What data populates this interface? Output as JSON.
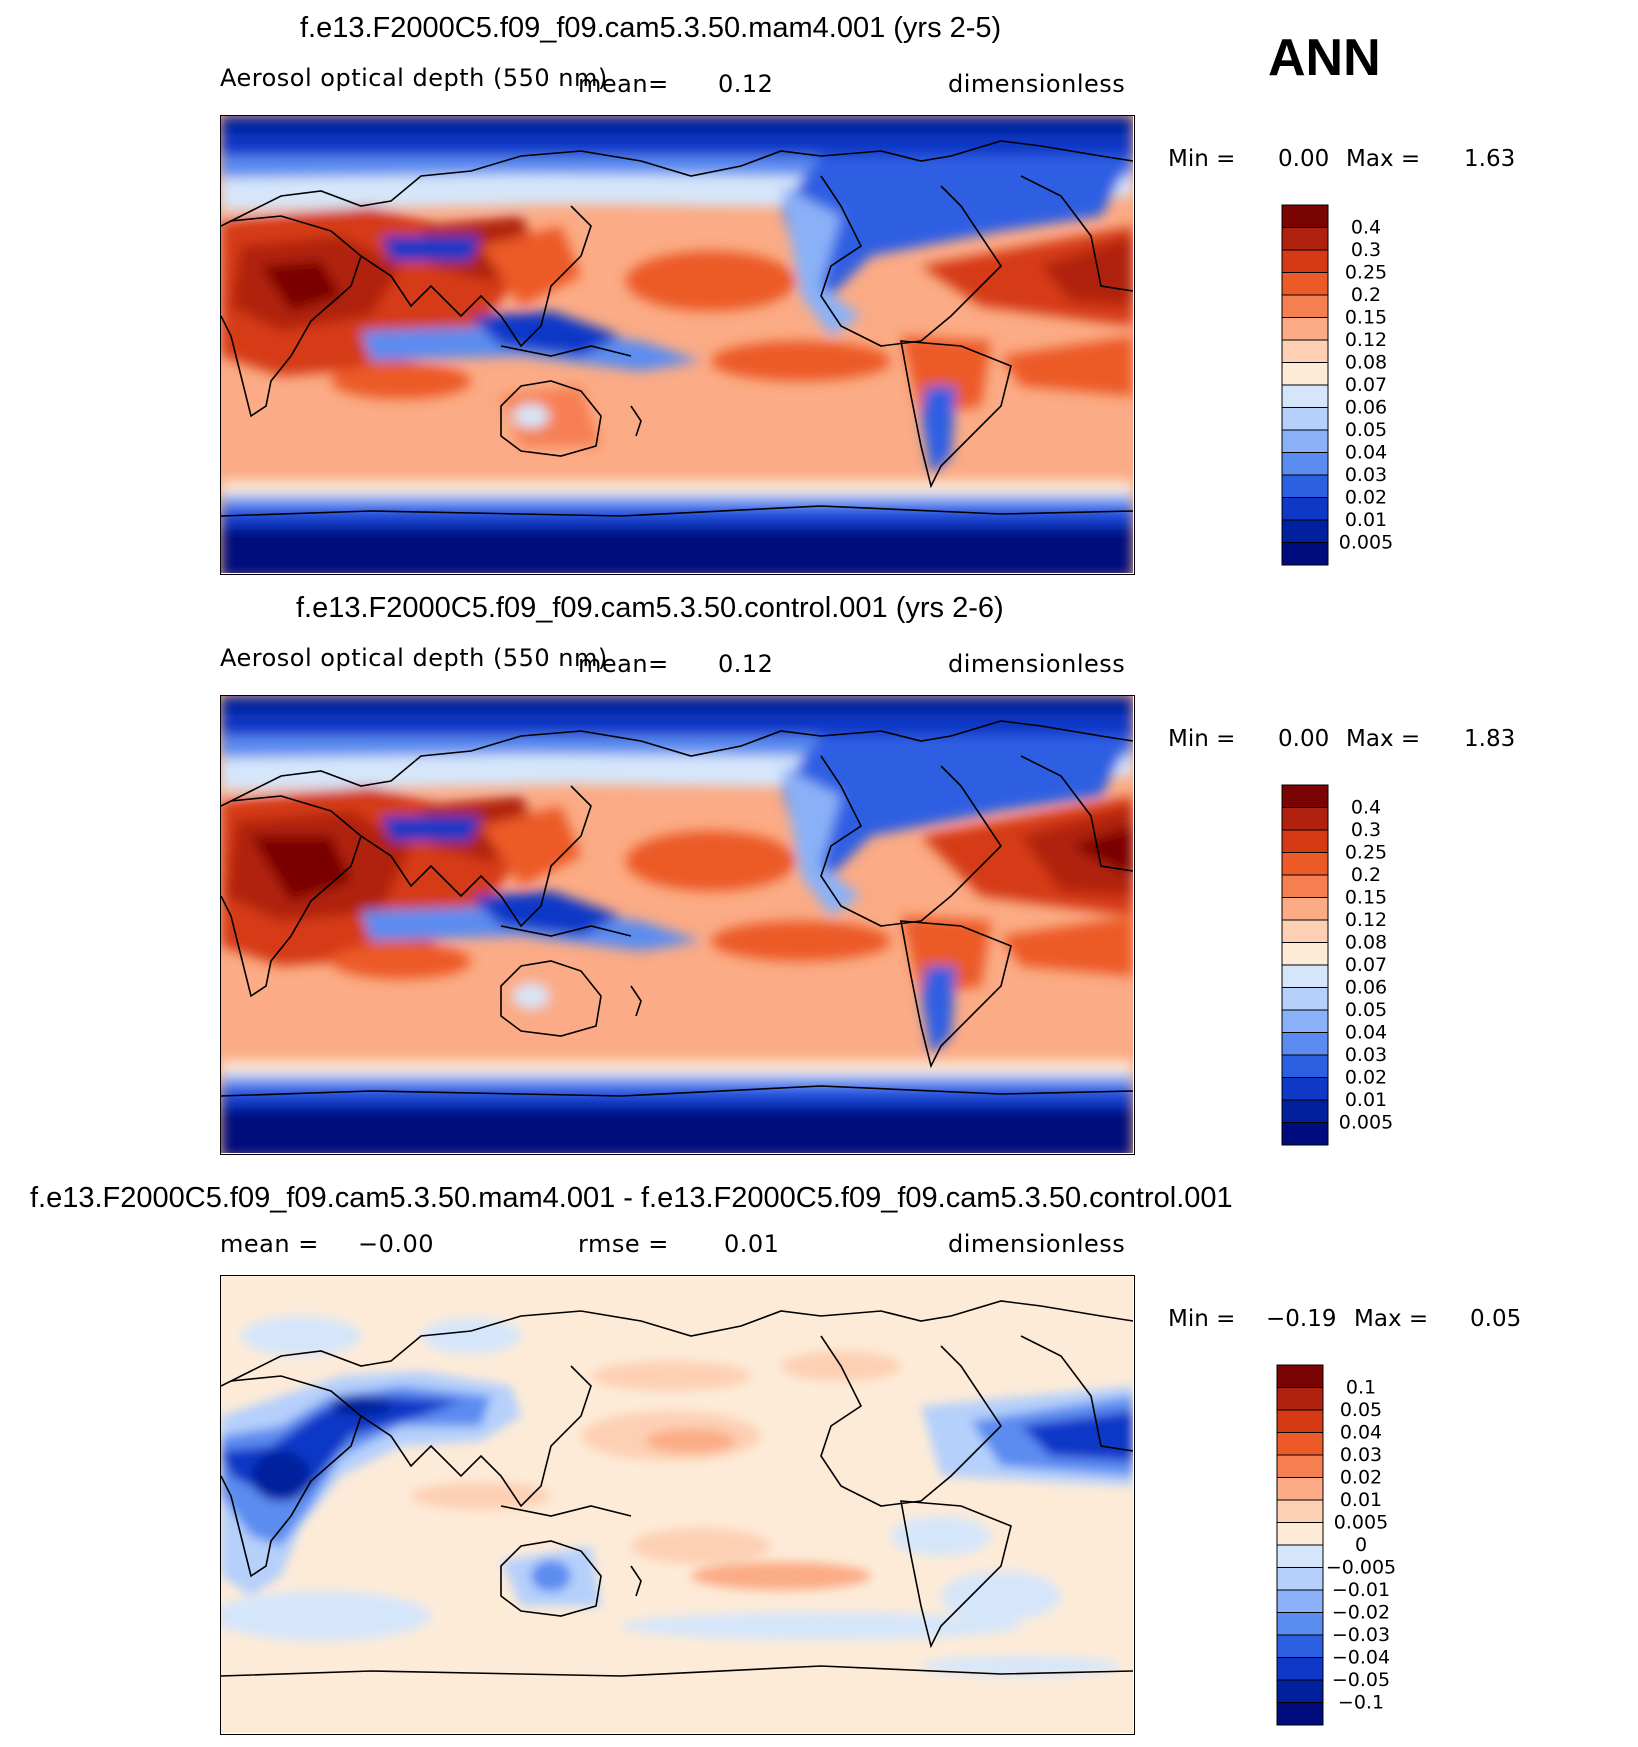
{
  "season": "ANN",
  "panels": [
    {
      "title": "f.e13.F2000C5.f09_f09.cam5.3.50.mam4.001 (yrs 2-5)",
      "variable": "Aerosol optical depth (550 nm)",
      "mean_label": "mean=",
      "mean_value": "0.12",
      "units": "dimensionless",
      "min_label": "Min =",
      "min_value": "0.00",
      "max_label": "Max =",
      "max_value": "1.63",
      "colorbar": {
        "labels": [
          "0.4",
          "0.3",
          "0.25",
          "0.2",
          "0.15",
          "0.12",
          "0.08",
          "0.07",
          "0.06",
          "0.05",
          "0.04",
          "0.03",
          "0.02",
          "0.01",
          "0.005"
        ],
        "colors": [
          "#7a0403",
          "#b0220f",
          "#d53a15",
          "#ec5a28",
          "#f67f52",
          "#fbab85",
          "#fdd0b4",
          "#fdebd8",
          "#d6e6fa",
          "#b5d0fb",
          "#8ab1f7",
          "#5b8cf0",
          "#2d5fe3",
          "#1038c7",
          "#00209e",
          "#000b7d"
        ]
      }
    },
    {
      "title": "f.e13.F2000C5.f09_f09.cam5.3.50.control.001 (yrs 2-6)",
      "variable": "Aerosol optical depth (550 nm)",
      "mean_label": "mean=",
      "mean_value": "0.12",
      "units": "dimensionless",
      "min_label": "Min =",
      "min_value": "0.00",
      "max_label": "Max =",
      "max_value": "1.83",
      "colorbar": {
        "labels": [
          "0.4",
          "0.3",
          "0.25",
          "0.2",
          "0.15",
          "0.12",
          "0.08",
          "0.07",
          "0.06",
          "0.05",
          "0.04",
          "0.03",
          "0.02",
          "0.01",
          "0.005"
        ],
        "colors": [
          "#7a0403",
          "#b0220f",
          "#d53a15",
          "#ec5a28",
          "#f67f52",
          "#fbab85",
          "#fdd0b4",
          "#fdebd8",
          "#d6e6fa",
          "#b5d0fb",
          "#8ab1f7",
          "#5b8cf0",
          "#2d5fe3",
          "#1038c7",
          "#00209e",
          "#000b7d"
        ]
      }
    },
    {
      "title": "f.e13.F2000C5.f09_f09.cam5.3.50.mam4.001 - f.e13.F2000C5.f09_f09.cam5.3.50.control.001",
      "mean_label": "mean =",
      "mean_value": "−0.00",
      "rmse_label": "rmse =",
      "rmse_value": "0.01",
      "units": "dimensionless",
      "min_label": "Min =",
      "min_value": "−0.19",
      "max_label": "Max =",
      "max_value": "0.05",
      "colorbar": {
        "labels": [
          "0.1",
          "0.05",
          "0.04",
          "0.03",
          "0.02",
          "0.01",
          "0.005",
          "0",
          "−0.005",
          "−0.01",
          "−0.02",
          "−0.03",
          "−0.04",
          "−0.05",
          "−0.1"
        ],
        "colors": [
          "#7a0403",
          "#b0220f",
          "#d53a15",
          "#ec5a28",
          "#f67f52",
          "#fbab85",
          "#fdd0b4",
          "#fdebd8",
          "#d6e6fa",
          "#b5d0fb",
          "#8ab1f7",
          "#5b8cf0",
          "#2d5fe3",
          "#1038c7",
          "#00209e",
          "#000b7d"
        ]
      }
    }
  ]
}
